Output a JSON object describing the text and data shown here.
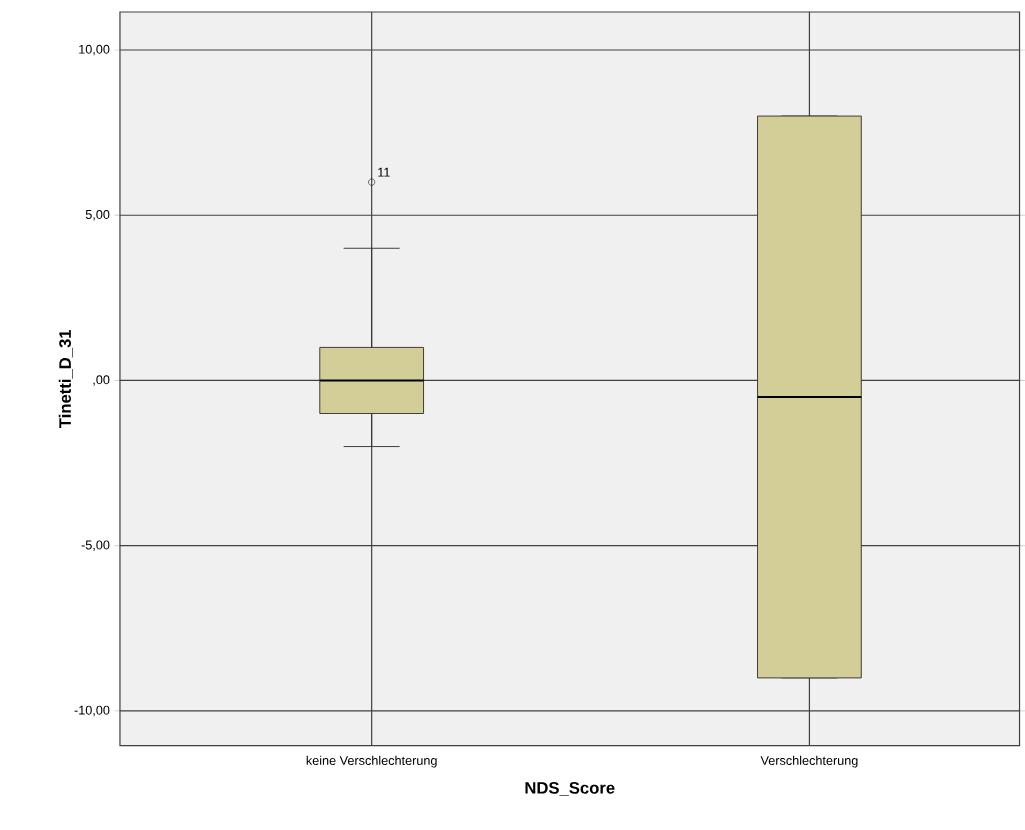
{
  "chart_data": {
    "type": "box",
    "xlabel": "NDS_Score",
    "ylabel": "Tinetti_D_31",
    "categories": [
      "keine Verschlechterung",
      "Verschlechterung"
    ],
    "boxes": [
      {
        "low": -2,
        "q1": -1,
        "median": 0,
        "q3": 1,
        "high": 4,
        "outliers": [
          6
        ]
      },
      {
        "low": -9,
        "q1": -9,
        "median": -0.5,
        "q3": 8,
        "high": 8
      }
    ],
    "color": "#d3ce97",
    "ylim": [
      -11.05,
      11.15
    ],
    "yticks": [
      {
        "value": -10,
        "label": "-10,00"
      },
      {
        "value": -5,
        "label": "-5,00"
      },
      {
        "value": 0,
        "label": ",00"
      },
      {
        "value": 5,
        "label": "5,00"
      },
      {
        "value": 10,
        "label": "10,00"
      }
    ],
    "grid": true,
    "annotations": [
      "11"
    ]
  }
}
